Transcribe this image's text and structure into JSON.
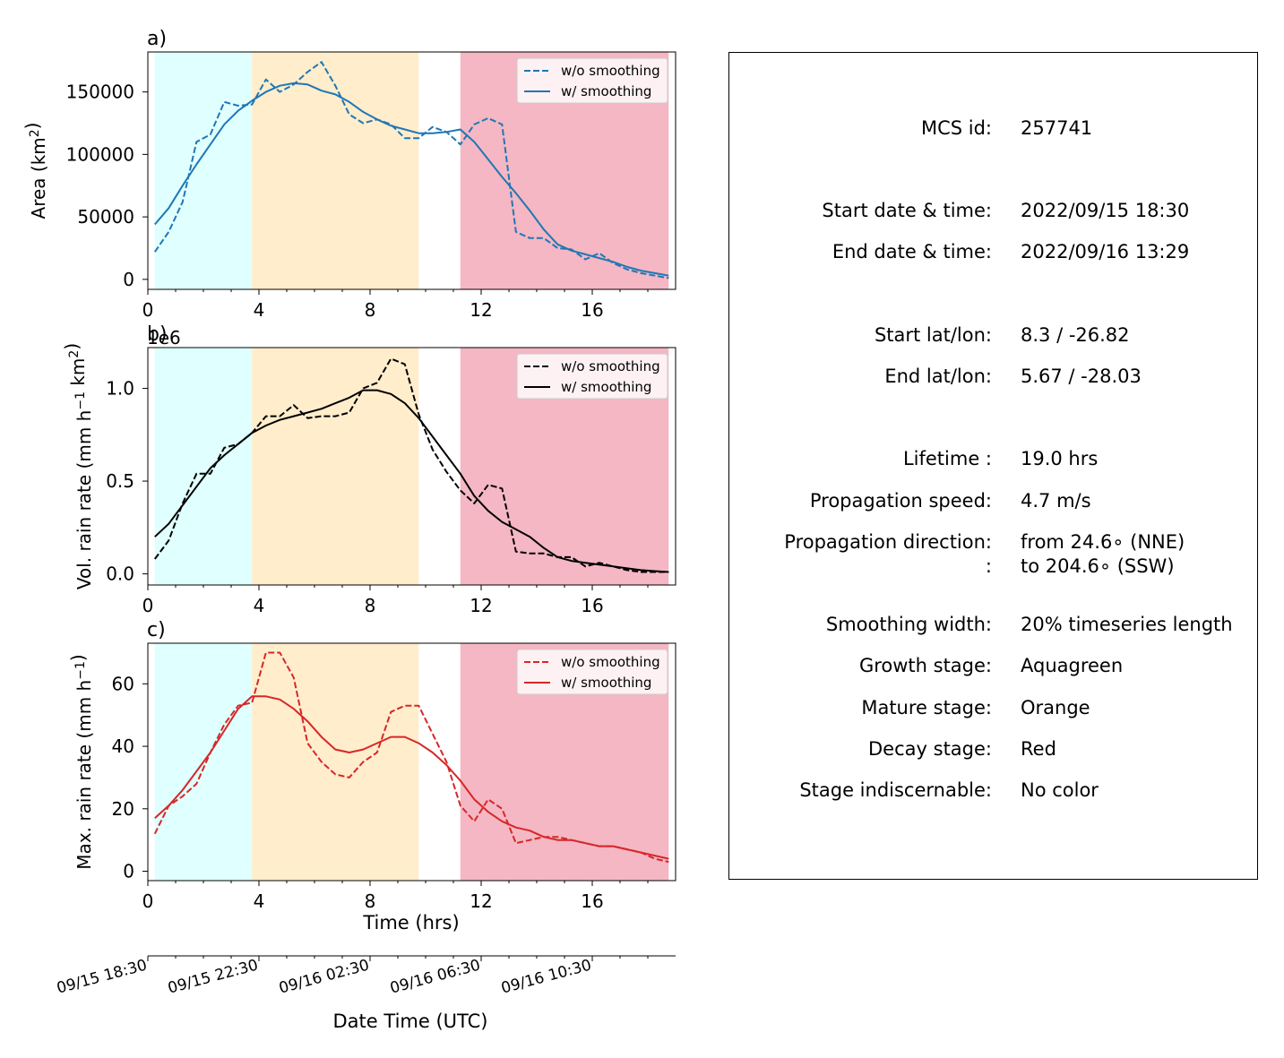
{
  "figure": {
    "x_tick_labels": [
      "0",
      "4",
      "8",
      "12",
      "16"
    ],
    "stage_colors": {
      "growth": "#e0ffff",
      "mature": "#ffedcc",
      "decay": "#f4b7c3"
    },
    "stage_spans_hrs": {
      "growth": [
        0.25,
        3.75
      ],
      "mature": [
        3.75,
        9.75
      ],
      "decay": [
        11.25,
        18.75
      ]
    },
    "xlabel_time": "Time (hrs)",
    "date_axis": {
      "label": "Date Time (UTC)",
      "tick_labels": [
        "09/15 18:30",
        "09/15 22:30",
        "09/16 02:30",
        "09/16 06:30",
        "09/16 10:30"
      ]
    }
  },
  "chart_data": [
    {
      "type": "line",
      "panel_label": "a)",
      "ylabel": "Area  (km²)",
      "xlim": [
        0,
        19
      ],
      "ylim": [
        -8000,
        182000
      ],
      "yticks": [
        0,
        50000,
        100000,
        150000
      ],
      "ytick_labels": [
        "0",
        "50000",
        "100000",
        "150000"
      ],
      "color": "#1f77b4",
      "legend": {
        "placement": "upper right",
        "entries": [
          "w/o smoothing",
          "w/ smoothing"
        ]
      },
      "series": [
        {
          "name": "w/o smoothing",
          "style": "dashed",
          "x": [
            0.25,
            0.75,
            1.25,
            1.75,
            2.25,
            2.75,
            3.25,
            3.75,
            4.25,
            4.75,
            5.25,
            5.75,
            6.25,
            6.75,
            7.25,
            7.75,
            8.25,
            8.75,
            9.25,
            9.75,
            10.25,
            10.75,
            11.25,
            11.75,
            12.25,
            12.75,
            13.25,
            13.75,
            14.25,
            14.75,
            15.25,
            15.75,
            16.25,
            16.75,
            17.25,
            17.75,
            18.25,
            18.75
          ],
          "y": [
            22000,
            38000,
            62000,
            110000,
            116000,
            142000,
            139000,
            140000,
            160000,
            150000,
            156000,
            166000,
            174000,
            155000,
            132000,
            125000,
            128000,
            124000,
            113000,
            113000,
            122000,
            118000,
            108000,
            124000,
            129000,
            124000,
            38000,
            33000,
            33000,
            25000,
            24000,
            16000,
            21000,
            13000,
            8000,
            5000,
            3000,
            1000
          ]
        },
        {
          "name": "w/ smoothing",
          "style": "solid",
          "x": [
            0.25,
            0.75,
            1.25,
            1.75,
            2.25,
            2.75,
            3.25,
            3.75,
            4.25,
            4.75,
            5.25,
            5.75,
            6.25,
            6.75,
            7.25,
            7.75,
            8.25,
            8.75,
            9.25,
            9.75,
            10.25,
            10.75,
            11.25,
            11.75,
            12.25,
            12.75,
            13.25,
            13.75,
            14.25,
            14.75,
            15.25,
            15.75,
            16.25,
            16.75,
            17.25,
            17.75,
            18.25,
            18.75
          ],
          "y": [
            44000,
            57000,
            75000,
            92000,
            108000,
            124000,
            135000,
            143000,
            150000,
            155000,
            157000,
            156000,
            151000,
            148000,
            142000,
            134000,
            128000,
            123000,
            120000,
            117000,
            117000,
            118000,
            120000,
            110000,
            96000,
            82000,
            69000,
            55000,
            40000,
            28000,
            23000,
            20000,
            17000,
            14000,
            10000,
            7000,
            5000,
            3000
          ]
        }
      ]
    },
    {
      "type": "line",
      "panel_label": "b)",
      "ylabel": "Vol. rain rate (mm h⁻¹ km²)",
      "offset_text": "1e6",
      "xlim": [
        0,
        19
      ],
      "ylim": [
        -0.06,
        1.22
      ],
      "yticks": [
        0.0,
        0.5,
        1.0
      ],
      "ytick_labels": [
        "0.0",
        "0.5",
        "1.0"
      ],
      "color": "#000000",
      "legend": {
        "placement": "upper right",
        "entries": [
          "w/o smoothing",
          "w/ smoothing"
        ]
      },
      "series": [
        {
          "name": "w/o smoothing",
          "style": "dashed",
          "x": [
            0.25,
            0.75,
            1.25,
            1.75,
            2.25,
            2.75,
            3.25,
            3.75,
            4.25,
            4.75,
            5.25,
            5.75,
            6.25,
            6.75,
            7.25,
            7.75,
            8.25,
            8.75,
            9.25,
            9.75,
            10.25,
            10.75,
            11.25,
            11.75,
            12.25,
            12.75,
            13.25,
            13.75,
            14.25,
            14.75,
            15.25,
            15.75,
            16.25,
            16.75,
            17.25,
            17.75,
            18.25,
            18.75
          ],
          "y": [
            0.08,
            0.18,
            0.38,
            0.54,
            0.54,
            0.68,
            0.7,
            0.76,
            0.85,
            0.85,
            0.91,
            0.84,
            0.85,
            0.85,
            0.87,
            1.0,
            1.03,
            1.16,
            1.13,
            0.86,
            0.67,
            0.55,
            0.45,
            0.38,
            0.48,
            0.46,
            0.12,
            0.11,
            0.11,
            0.09,
            0.09,
            0.04,
            0.06,
            0.04,
            0.02,
            0.01,
            0.01,
            0.01
          ]
        },
        {
          "name": "w/ smoothing",
          "style": "solid",
          "x": [
            0.25,
            0.75,
            1.25,
            1.75,
            2.25,
            2.75,
            3.25,
            3.75,
            4.25,
            4.75,
            5.25,
            5.75,
            6.25,
            6.75,
            7.25,
            7.75,
            8.25,
            8.75,
            9.25,
            9.75,
            10.25,
            10.75,
            11.25,
            11.75,
            12.25,
            12.75,
            13.25,
            13.75,
            14.25,
            14.75,
            15.25,
            15.75,
            16.25,
            16.75,
            17.25,
            17.75,
            18.25,
            18.75
          ],
          "y": [
            0.2,
            0.27,
            0.37,
            0.47,
            0.57,
            0.64,
            0.7,
            0.76,
            0.8,
            0.83,
            0.85,
            0.87,
            0.89,
            0.92,
            0.95,
            0.99,
            0.99,
            0.97,
            0.92,
            0.84,
            0.74,
            0.64,
            0.54,
            0.42,
            0.34,
            0.28,
            0.24,
            0.2,
            0.14,
            0.09,
            0.07,
            0.06,
            0.05,
            0.04,
            0.03,
            0.02,
            0.015,
            0.01
          ]
        }
      ]
    },
    {
      "type": "line",
      "panel_label": "c)",
      "ylabel": "Max. rain rate  (mm h⁻¹)",
      "xlim": [
        0,
        19
      ],
      "ylim": [
        -3,
        73
      ],
      "yticks": [
        0,
        20,
        40,
        60
      ],
      "ytick_labels": [
        "0",
        "20",
        "40",
        "60"
      ],
      "color": "#d62728",
      "legend": {
        "placement": "upper right",
        "entries": [
          "w/o smoothing",
          "w/ smoothing"
        ]
      },
      "series": [
        {
          "name": "w/o smoothing",
          "style": "dashed",
          "x": [
            0.25,
            0.75,
            1.25,
            1.75,
            2.25,
            2.75,
            3.25,
            3.75,
            4.25,
            4.75,
            5.25,
            5.75,
            6.25,
            6.75,
            7.25,
            7.75,
            8.25,
            8.75,
            9.25,
            9.75,
            10.25,
            10.75,
            11.25,
            11.75,
            12.25,
            12.75,
            13.25,
            13.75,
            14.25,
            14.75,
            15.25,
            15.75,
            16.25,
            16.75,
            17.25,
            17.75,
            18.25,
            18.75
          ],
          "y": [
            12,
            21,
            24,
            28,
            38,
            47,
            53,
            54,
            70,
            70,
            62,
            41,
            35,
            31,
            30,
            35,
            38,
            51,
            53,
            53,
            44,
            35,
            21,
            16,
            23,
            20,
            9,
            10,
            11,
            11,
            10,
            9,
            8,
            8,
            7,
            6,
            4,
            3
          ]
        },
        {
          "name": "w/ smoothing",
          "style": "solid",
          "x": [
            0.25,
            0.75,
            1.25,
            1.75,
            2.25,
            2.75,
            3.25,
            3.75,
            4.25,
            4.75,
            5.25,
            5.75,
            6.25,
            6.75,
            7.25,
            7.75,
            8.25,
            8.75,
            9.25,
            9.75,
            10.25,
            10.75,
            11.25,
            11.75,
            12.25,
            12.75,
            13.25,
            13.75,
            14.25,
            14.75,
            15.25,
            15.75,
            16.25,
            16.75,
            17.25,
            17.75,
            18.25,
            18.75
          ],
          "y": [
            17,
            21,
            26,
            32,
            38,
            45,
            52,
            56,
            56,
            55,
            52,
            48,
            43,
            39,
            38,
            39,
            41,
            43,
            43,
            41,
            38,
            34,
            29,
            23,
            19,
            16,
            14,
            13,
            11,
            10,
            10,
            9,
            8,
            8,
            7,
            6,
            5,
            4
          ]
        }
      ]
    }
  ],
  "info": {
    "rows": [
      {
        "label": "MCS id:",
        "value": "257741"
      },
      {
        "label": "Start date & time:",
        "value": "2022/09/15 18:30"
      },
      {
        "label": "End date & time:",
        "value": "2022/09/16 13:29"
      },
      {
        "label": "Start lat/lon:",
        "value": "8.3 / -26.82"
      },
      {
        "label": "End lat/lon:",
        "value": "5.67 / -28.03"
      },
      {
        "label": "Lifetime :",
        "value": "19.0 hrs"
      },
      {
        "label": "Propagation speed:",
        "value": "4.7 m/s"
      },
      {
        "label": "Propagation direction:",
        "value": "from  24.6∘ (NNE)"
      },
      {
        "label": ":",
        "value": "to   204.6∘ (SSW)"
      },
      {
        "label": "Smoothing width:",
        "value": "20% timeseries length"
      },
      {
        "label": "Growth stage:",
        "value": "Aquagreen"
      },
      {
        "label": "Mature stage:",
        "value": "Orange"
      },
      {
        "label": "Decay stage:",
        "value": "Red"
      },
      {
        "label": "Stage indiscernable:",
        "value": "No color"
      }
    ]
  }
}
